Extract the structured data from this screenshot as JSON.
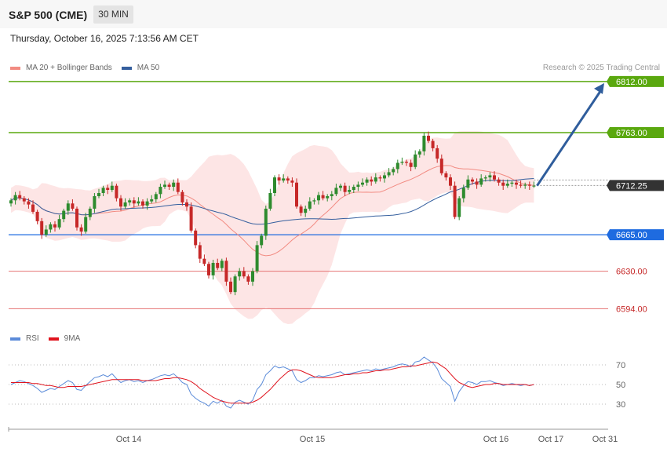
{
  "header": {
    "symbol": "S&P 500 (CME)",
    "timeframe": "30 MIN"
  },
  "datetime": "Thursday, October 16, 2025 7:13:56 AM CET",
  "legend": [
    {
      "label": "MA 20 + Bollinger Bands",
      "color": "#f28b82"
    },
    {
      "label": "MA 50",
      "color": "#355f9e"
    }
  ],
  "copyright": "Research © 2025 Trading Central",
  "rsi_legend": [
    {
      "label": "RSI",
      "color": "#5b8bd9"
    },
    {
      "label": "9MA",
      "color": "#e0141e"
    }
  ],
  "colors": {
    "up": "#2e8b2e",
    "down": "#c62828",
    "resistance": "#5aa80f",
    "support": "#1e6be0",
    "lower_support": "#e57373",
    "band_fill": "#fde0e0",
    "current": "#333333",
    "arrow": "#2f5d9c"
  },
  "chart_data": [
    {
      "type": "candlestick",
      "title": "S&P 500 (CME)",
      "timeframe": "30 MIN",
      "x_labels": [
        "Oct 14",
        "Oct 15",
        "Oct 16",
        "Oct 17",
        "Oct 31"
      ],
      "ylim": [
        6580,
        6830
      ],
      "current_price": 6712.25,
      "levels": [
        {
          "value": 6812.0,
          "label": "6812.00",
          "type": "resistance"
        },
        {
          "value": 6763.0,
          "label": "6763.00",
          "type": "resistance"
        },
        {
          "value": 6712.25,
          "label": "6712.25",
          "type": "current"
        },
        {
          "value": 6665.0,
          "label": "6665.00",
          "type": "support"
        },
        {
          "value": 6630.0,
          "label": "6630.00",
          "type": "lower_support"
        },
        {
          "value": 6594.0,
          "label": "6594.00",
          "type": "lower_support"
        }
      ],
      "projection": {
        "from": 6712,
        "to": 6812,
        "direction": "up"
      },
      "close": [
        6698,
        6703,
        6700,
        6697,
        6694,
        6687,
        6678,
        6665,
        6670,
        6675,
        6672,
        6680,
        6688,
        6695,
        6690,
        6672,
        6668,
        6682,
        6690,
        6702,
        6705,
        6710,
        6708,
        6712,
        6700,
        6692,
        6696,
        6698,
        6695,
        6697,
        6693,
        6697,
        6699,
        6704,
        6711,
        6713,
        6711,
        6715,
        6706,
        6696,
        6692,
        6669,
        6655,
        6642,
        6637,
        6626,
        6638,
        6633,
        6640,
        6620,
        6610,
        6625,
        6630,
        6625,
        6620,
        6630,
        6655,
        6664,
        6690,
        6705,
        6720,
        6717,
        6719,
        6717,
        6715,
        6692,
        6686,
        6690,
        6697,
        6698,
        6703,
        6700,
        6702,
        6704,
        6710,
        6712,
        6706,
        6708,
        6711,
        6713,
        6715,
        6718,
        6716,
        6720,
        6719,
        6722,
        6725,
        6728,
        6734,
        6735,
        6734,
        6730,
        6742,
        6745,
        6760,
        6755,
        6748,
        6738,
        6724,
        6720,
        6712,
        6682,
        6700,
        6710,
        6718,
        6716,
        6713,
        6719,
        6720,
        6722,
        6718,
        6715,
        6712,
        6714,
        6715,
        6713,
        6712,
        6713,
        6712,
        6712
      ]
    },
    {
      "type": "line",
      "title": "RSI",
      "yticks": [
        70,
        50,
        30
      ],
      "series": [
        {
          "name": "RSI",
          "values": [
            50,
            52,
            54,
            53,
            51,
            49,
            46,
            42,
            44,
            46,
            45,
            48,
            51,
            54,
            52,
            45,
            44,
            49,
            53,
            57,
            58,
            60,
            58,
            61,
            56,
            52,
            54,
            55,
            53,
            54,
            52,
            54,
            55,
            57,
            59,
            60,
            59,
            61,
            57,
            52,
            50,
            40,
            36,
            33,
            31,
            28,
            33,
            31,
            34,
            28,
            26,
            32,
            34,
            32,
            30,
            34,
            45,
            50,
            60,
            64,
            69,
            67,
            68,
            66,
            64,
            55,
            52,
            54,
            57,
            57,
            59,
            58,
            59,
            60,
            62,
            63,
            60,
            61,
            62,
            63,
            64,
            65,
            64,
            66,
            65,
            66,
            67,
            68,
            70,
            71,
            70,
            68,
            73,
            74,
            78,
            75,
            72,
            66,
            56,
            52,
            48,
            33,
            43,
            49,
            53,
            52,
            50,
            53,
            53,
            54,
            52,
            51,
            49,
            50,
            51,
            50,
            49,
            50,
            49,
            50
          ]
        },
        {
          "name": "9MA",
          "values": [
            52,
            52,
            52,
            52,
            52,
            51,
            51,
            50,
            49,
            49,
            48,
            47,
            47,
            48,
            48,
            48,
            48,
            49,
            50,
            51,
            52,
            53,
            54,
            55,
            55,
            55,
            55,
            55,
            55,
            55,
            54,
            54,
            54,
            54,
            55,
            56,
            56,
            57,
            57,
            56,
            55,
            53,
            50,
            46,
            43,
            40,
            37,
            35,
            33,
            32,
            31,
            31,
            31,
            31,
            31,
            32,
            34,
            37,
            41,
            45,
            50,
            55,
            59,
            63,
            65,
            65,
            64,
            62,
            60,
            58,
            57,
            57,
            57,
            57,
            58,
            59,
            60,
            60,
            61,
            61,
            62,
            62,
            63,
            64,
            64,
            65,
            65,
            66,
            67,
            68,
            68,
            69,
            69,
            70,
            71,
            72,
            73,
            72,
            69,
            66,
            61,
            56,
            52,
            50,
            48,
            47,
            48,
            49,
            50,
            50,
            51,
            51,
            50,
            50,
            50,
            50,
            50,
            50,
            49,
            50
          ]
        }
      ]
    }
  ]
}
